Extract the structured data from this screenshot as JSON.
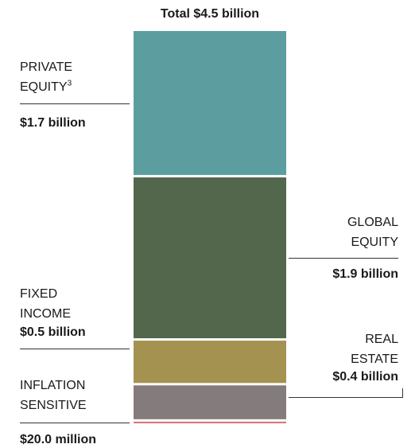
{
  "chart_data": {
    "type": "bar",
    "subtype": "stacked-single",
    "title": "Total $4.5 billion",
    "unit": "billion USD",
    "segments": [
      {
        "name": "PRIVATE EQUITY",
        "footnote": "3",
        "value": 1.7,
        "label": "$1.7 billion",
        "color": "#5c9e9f"
      },
      {
        "name": "GLOBAL EQUITY",
        "value": 1.9,
        "label": "$1.9 billion",
        "color": "#52674c"
      },
      {
        "name": "FIXED INCOME",
        "value": 0.5,
        "label": "$0.5 billion",
        "color": "#a39250"
      },
      {
        "name": "REAL ESTATE",
        "value": 0.4,
        "label": "$0.4 billion",
        "color": "#847b7c"
      },
      {
        "name": "INFLATION SENSITIVE",
        "value": 0.02,
        "label": "$20.0 million",
        "color": "#d9777a"
      }
    ]
  },
  "labels": {
    "private_equity_line1": "PRIVATE",
    "private_equity_line2": "EQUITY",
    "private_equity_sup": "3",
    "global_equity_line1": "GLOBAL",
    "global_equity_line2": "EQUITY",
    "fixed_income_line1": "FIXED",
    "fixed_income_line2": "INCOME",
    "real_estate_line1": "REAL",
    "real_estate_line2": "ESTATE",
    "inflation_line1": "INFLATION",
    "inflation_line2": "SENSITIVE"
  }
}
